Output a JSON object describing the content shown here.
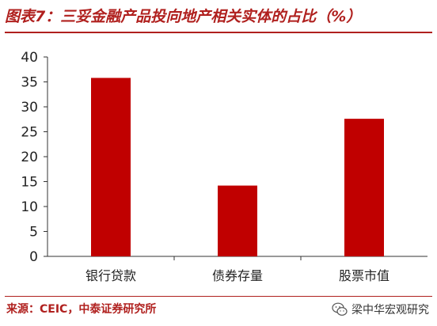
{
  "header": {
    "title": "图表7：三妥金融产品投向地产相关实体的占比（%）"
  },
  "chart_data": {
    "type": "bar",
    "title": "",
    "xlabel": "",
    "ylabel": "",
    "categories": [
      "银行贷款",
      "债券存量",
      "股票市值"
    ],
    "values": [
      35.8,
      14.2,
      27.6
    ],
    "ylim": [
      0,
      40
    ],
    "yticks": [
      "0",
      "5",
      "10",
      "15",
      "20",
      "25",
      "30",
      "35",
      "40"
    ],
    "grid": false,
    "legend": "none",
    "bar_color": "#c00000"
  },
  "footer": {
    "source": "来源：CEIC，中泰证券研究所",
    "watermark": "梁中华宏观研究",
    "watermark_icon": "wechat-icon"
  }
}
